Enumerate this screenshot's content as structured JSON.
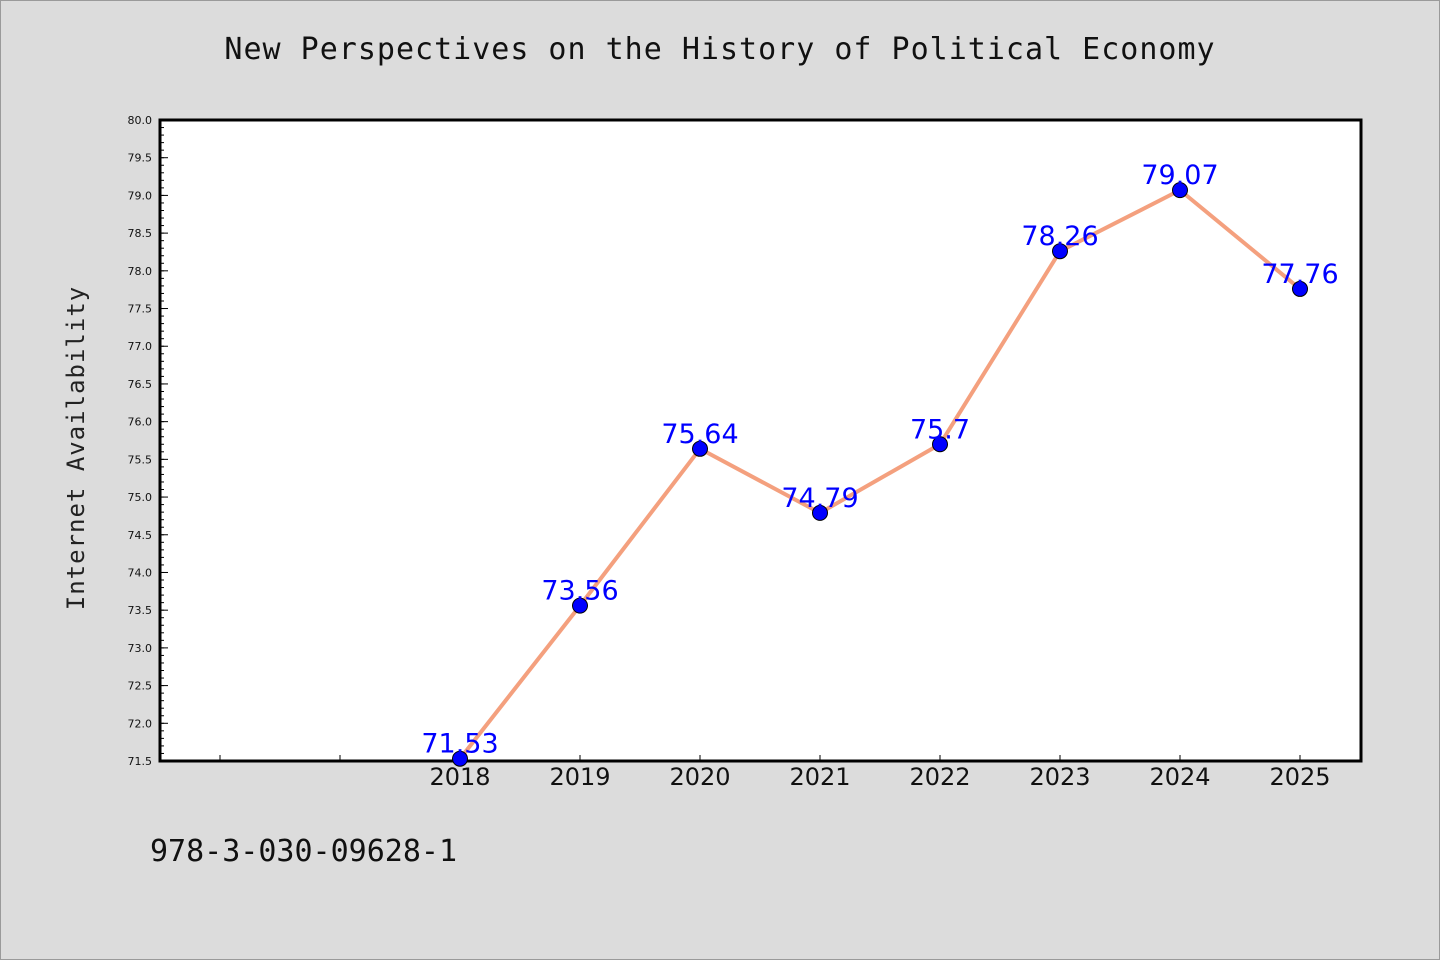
{
  "chart_data": {
    "type": "line",
    "title": "New Perspectives on the History of Political Economy",
    "xlabel": "",
    "ylabel": "Internet Availability",
    "categories": [
      "2018",
      "2019",
      "2020",
      "2021",
      "2022",
      "2023",
      "2024",
      "2025"
    ],
    "series": [
      {
        "values": [
          71.53,
          73.56,
          75.64,
          74.79,
          75.7,
          78.26,
          79.07,
          77.76
        ],
        "labels": [
          "71.53",
          "73.56",
          "75.64",
          "74.79",
          "75.7",
          "78.26",
          "79.07",
          "77.76"
        ]
      }
    ],
    "ylim": [
      71.5,
      80.0
    ],
    "yticks": [
      "71.5",
      "72.0",
      "72.5",
      "73.0",
      "73.5",
      "74.0",
      "74.5",
      "75.0",
      "75.5",
      "76.0",
      "76.5",
      "77.0",
      "77.5",
      "78.0",
      "78.5",
      "79.0",
      "79.5",
      "80.0"
    ],
    "grid": false,
    "colors": {
      "line": "#f4a07e",
      "marker": "#0000ff",
      "label": "#0000ff",
      "background": "#dcdcdc",
      "plot_area": "#ffffff"
    }
  },
  "footnote": "978-3-030-09628-1"
}
